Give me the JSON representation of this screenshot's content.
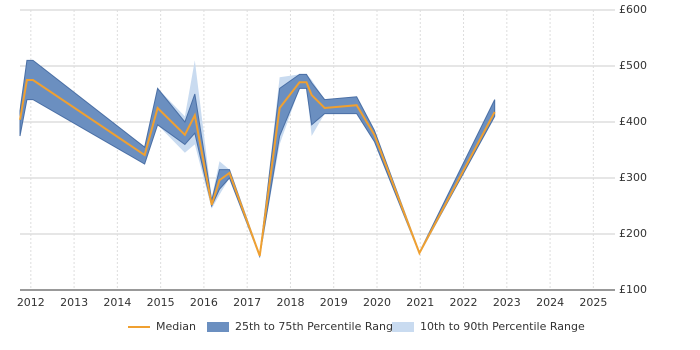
{
  "chart_data": {
    "type": "line",
    "x": [
      2011.75,
      2011.91,
      2012.05,
      2014.63,
      2014.93,
      2015.56,
      2015.79,
      2016.18,
      2016.36,
      2016.59,
      2017.29,
      2017.75,
      2018.21,
      2018.37,
      2018.49,
      2018.79,
      2019.53,
      2019.94,
      2020.98,
      2022.72
    ],
    "series": [
      {
        "name": "Median",
        "color": "#f0a030",
        "values": [
          404,
          475,
          475,
          341,
          425,
          377,
          412,
          252,
          296,
          309,
          161,
          425,
          471,
          471,
          448,
          425,
          430,
          377,
          166,
          418
        ]
      },
      {
        "name": "25th to 75th Percentile Range",
        "color": "#6b8fc0",
        "low": [
          375,
          440,
          440,
          325,
          395,
          360,
          380,
          250,
          280,
          300,
          160,
          375,
          460,
          460,
          395,
          415,
          415,
          365,
          165,
          410
        ],
        "high": [
          420,
          510,
          510,
          355,
          460,
          400,
          450,
          260,
          315,
          315,
          162,
          460,
          485,
          485,
          470,
          440,
          445,
          385,
          167,
          440
        ]
      },
      {
        "name": "10th to 90th Percentile Range",
        "color": "#c9dbf0",
        "low": [
          375,
          440,
          440,
          325,
          395,
          345,
          360,
          245,
          270,
          300,
          160,
          360,
          460,
          460,
          375,
          415,
          415,
          365,
          165,
          410
        ],
        "high": [
          430,
          510,
          510,
          355,
          460,
          410,
          510,
          265,
          330,
          315,
          162,
          480,
          485,
          485,
          475,
          440,
          445,
          385,
          167,
          440
        ]
      }
    ],
    "xlim": [
      2011.75,
      2025.5
    ],
    "xticks": [
      2012,
      2013,
      2014,
      2015,
      2016,
      2017,
      2018,
      2019,
      2020,
      2021,
      2022,
      2023,
      2024,
      2025
    ],
    "ylim": [
      100,
      600
    ],
    "yticks": [
      {
        "value": 100,
        "label": "£100"
      },
      {
        "value": 200,
        "label": "£200"
      },
      {
        "value": 300,
        "label": "£300"
      },
      {
        "value": 400,
        "label": "£400"
      },
      {
        "value": 500,
        "label": "£500"
      },
      {
        "value": 600,
        "label": "£600"
      }
    ],
    "grid": true,
    "legend": "bottom"
  }
}
